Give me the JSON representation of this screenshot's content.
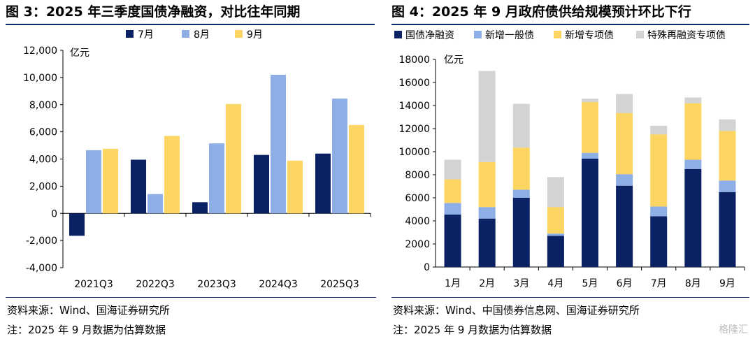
{
  "left": {
    "title": "图 3：2025 年三季度国债净融资，对比往年同期",
    "source": "资料来源：Wind、国海证券研究所",
    "note": "注：2025 年 9 月数据为估算数据"
  },
  "right": {
    "title": "图 4：2025 年 9 月政府债供给规模预计环比下行",
    "source": "资料来源：Wind、中国债券信息网、国海证券研究所",
    "note": "注：2025 年 9 月数据为估算数据"
  },
  "watermark": "格隆汇",
  "chart_data": [
    {
      "type": "bar",
      "ylabel": "亿元",
      "ylim": [
        -4000,
        12000
      ],
      "yticks": [
        -4000,
        -2000,
        0,
        2000,
        4000,
        6000,
        8000,
        10000,
        12000
      ],
      "ytick_labels": [
        "-4,000",
        "-2,000",
        "0",
        "2,000",
        "4,000",
        "6,000",
        "8,000",
        "10,000",
        "12,000"
      ],
      "categories": [
        "2021Q3",
        "2022Q3",
        "2023Q3",
        "2024Q3",
        "2025Q3"
      ],
      "legend_position": "top",
      "series": [
        {
          "name": "7月",
          "color": "#0a2163",
          "values": [
            -1650,
            3950,
            820,
            4300,
            4400
          ]
        },
        {
          "name": "8月",
          "color": "#8eaee6",
          "values": [
            4650,
            1420,
            5150,
            10200,
            8450
          ]
        },
        {
          "name": "9月",
          "color": "#fdd562",
          "values": [
            4750,
            5700,
            8050,
            3880,
            6500
          ]
        }
      ]
    },
    {
      "type": "stacked-bar",
      "ylabel": "亿元",
      "ylim": [
        0,
        18000
      ],
      "yticks": [
        0,
        2000,
        4000,
        6000,
        8000,
        10000,
        12000,
        14000,
        16000,
        18000
      ],
      "ytick_labels": [
        "0",
        "2000",
        "4000",
        "6000",
        "8000",
        "10000",
        "12000",
        "14000",
        "16000",
        "18000"
      ],
      "categories": [
        "1月",
        "2月",
        "3月",
        "4月",
        "5月",
        "6月",
        "7月",
        "8月",
        "9月"
      ],
      "legend_position": "top",
      "series": [
        {
          "name": "国债净融资",
          "color": "#0a2163",
          "values": [
            4550,
            4200,
            6000,
            2700,
            9400,
            7050,
            4400,
            8500,
            6500
          ]
        },
        {
          "name": "新增一般债",
          "color": "#8eaee6",
          "values": [
            1000,
            1000,
            700,
            200,
            500,
            1000,
            850,
            800,
            1000
          ]
        },
        {
          "name": "新增专项债",
          "color": "#fdd562",
          "values": [
            2050,
            3900,
            3650,
            2300,
            4400,
            5300,
            6250,
            4900,
            4300
          ]
        },
        {
          "name": "特殊再融资专项债",
          "color": "#d3d3d3",
          "values": [
            1700,
            7900,
            3800,
            2600,
            300,
            1650,
            750,
            500,
            1000
          ]
        }
      ]
    }
  ]
}
